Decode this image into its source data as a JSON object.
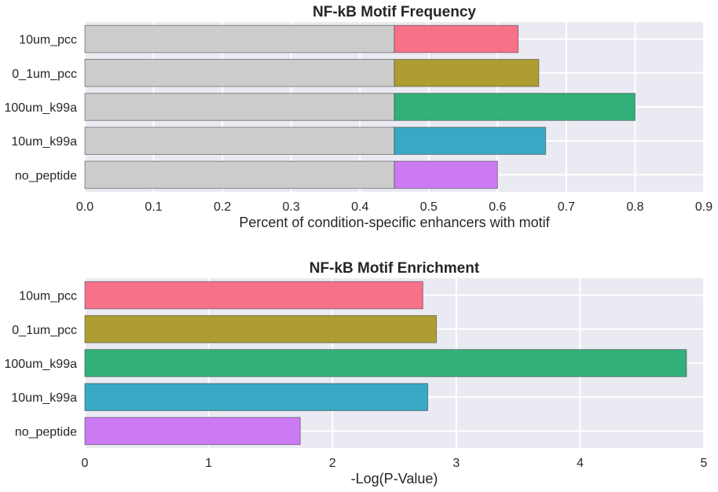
{
  "chart_data": [
    {
      "type": "bar",
      "orientation": "horizontal",
      "stacked": true,
      "title": "NF-kB Motif Frequency",
      "xlabel": "Percent of condition-specific enhancers with motif",
      "ylabel": "",
      "categories": [
        "10um_pcc",
        "0_1um_pcc",
        "100um_k99a",
        "10um_k99a",
        "no_peptide"
      ],
      "series": [
        {
          "values": [
            0.45,
            0.45,
            0.45,
            0.45,
            0.45
          ],
          "colors": [
            "#cccccc",
            "#cccccc",
            "#cccccc",
            "#cccccc",
            "#cccccc"
          ]
        },
        {
          "values": [
            0.18,
            0.21,
            0.35,
            0.22,
            0.15
          ],
          "colors": [
            "#f77189",
            "#ae9d31",
            "#33b07a",
            "#38a9c5",
            "#cc7af4"
          ]
        }
      ],
      "xlim": [
        0,
        0.9
      ],
      "xticks": [
        "0.0",
        "0.1",
        "0.2",
        "0.3",
        "0.4",
        "0.5",
        "0.6",
        "0.7",
        "0.8",
        "0.9"
      ],
      "grid": true
    },
    {
      "type": "bar",
      "orientation": "horizontal",
      "title": "NF-kB Motif Enrichment",
      "xlabel": "-Log(P-Value)",
      "ylabel": "",
      "categories": [
        "10um_pcc",
        "0_1um_pcc",
        "100um_k99a",
        "10um_k99a",
        "no_peptide"
      ],
      "values": [
        2.73,
        2.84,
        4.86,
        2.77,
        1.74
      ],
      "colors": [
        "#f77189",
        "#ae9d31",
        "#33b07a",
        "#38a9c5",
        "#cc7af4"
      ],
      "xlim": [
        0,
        5
      ],
      "xticks": [
        "0",
        "1",
        "2",
        "3",
        "4",
        "5"
      ],
      "grid": true
    }
  ]
}
